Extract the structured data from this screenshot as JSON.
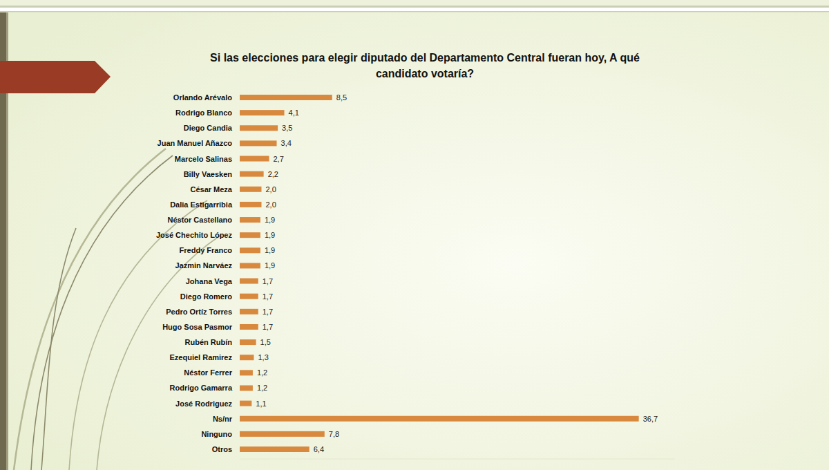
{
  "chart_data": {
    "type": "bar",
    "orientation": "horizontal",
    "title": "Si las elecciones para elegir diputado del Departamento Central fueran hoy, A qué candidato votaría?",
    "categories": [
      "Orlando Arévalo",
      "Rodrigo Blanco",
      "Diego Candia",
      "Juan Manuel Añazco",
      "Marcelo Salinas",
      "Billy Vaesken",
      "César Meza",
      "Dalia Estigarribia",
      "Néstor Castellano",
      "José Chechito López",
      "Freddy Franco",
      "Jazmin Narváez",
      "Johana Vega",
      "Diego Romero",
      "Pedro Ortíz Torres",
      "Hugo Sosa Pasmor",
      "Rubén Rubín",
      "Ezequiel Ramirez",
      "Néstor Ferrer",
      "Rodrigo Gamarra",
      "José Rodriguez",
      "Ns/nr",
      "Ninguno",
      "Otros"
    ],
    "values": [
      8.5,
      4.1,
      3.5,
      3.4,
      2.7,
      2.2,
      2.0,
      2.0,
      1.9,
      1.9,
      1.9,
      1.9,
      1.7,
      1.7,
      1.7,
      1.7,
      1.5,
      1.3,
      1.2,
      1.2,
      1.1,
      36.7,
      7.8,
      6.4
    ],
    "value_labels": [
      "8,5",
      "4,1",
      "3,5",
      "3,4",
      "2,7",
      "2,2",
      "2,0",
      "2,0",
      "1,9",
      "1,9",
      "1,9",
      "1,9",
      "1,7",
      "1,7",
      "1,7",
      "1,7",
      "1,5",
      "1,3",
      "1,2",
      "1,2",
      "1,1",
      "36,7",
      "7,8",
      "6,4"
    ],
    "color": "#d8893e",
    "xlim": [
      0,
      40
    ],
    "data_labels": true,
    "tick_labels": "y",
    "grid": false
  }
}
